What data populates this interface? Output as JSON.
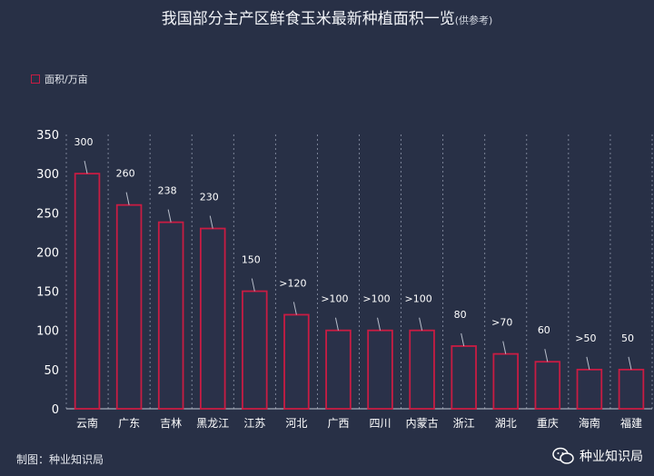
{
  "title": "我国部分主产区鲜食玉米最新种植面积一览",
  "subtitle": "(供参考)",
  "footer": "制图：种业知识局",
  "brand": "种业知识局",
  "colors": {
    "background": "#283046",
    "bar": "#c81c43",
    "bar_fill": "#2a3149",
    "text": "#ffffff"
  },
  "chart_data": {
    "type": "bar",
    "categories": [
      "云南",
      "广东",
      "吉林",
      "黑龙江",
      "江苏",
      "河北",
      "广西",
      "四川",
      "内蒙古",
      "浙江",
      "湖北",
      "重庆",
      "海南",
      "福建"
    ],
    "series": [
      {
        "name": "面积/万亩",
        "values": [
          300,
          260,
          238,
          230,
          150,
          120,
          100,
          100,
          100,
          80,
          70,
          60,
          50,
          50
        ],
        "labels": [
          "300",
          "260",
          "238",
          "230",
          "150",
          ">120",
          ">100",
          ">100",
          ">100",
          "80",
          ">70",
          "60",
          ">50",
          "50"
        ]
      }
    ],
    "ylim": [
      0,
      350
    ],
    "yticks": [
      0,
      50,
      100,
      150,
      200,
      250,
      300,
      350
    ],
    "grid": "vertical-dashed",
    "legend": "top-left"
  }
}
